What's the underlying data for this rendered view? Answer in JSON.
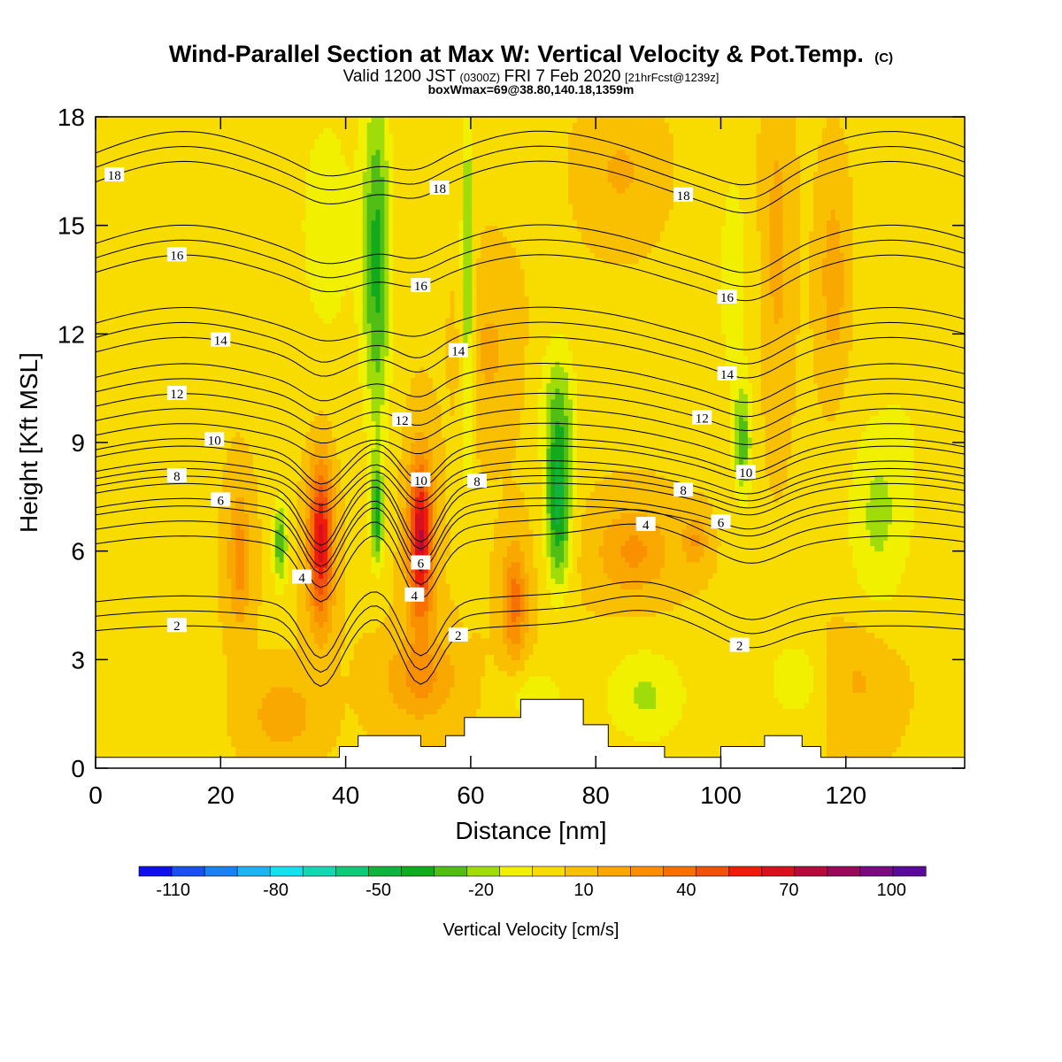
{
  "title": {
    "main": "Wind-Parallel Section at Max W: Vertical Velocity & Pot.Temp.",
    "main_suffix": "(C)",
    "line2_a": "Valid 1200 JST",
    "line2_b": "(0300Z)",
    "line2_c": "FRI 7 Feb 2020",
    "line2_d": "[21hrFcst@1239z]",
    "line3": "boxWmax=69@38.80,140.18,1359m"
  },
  "chart_data": {
    "type": "heatmap",
    "xlabel": "Distance [nm]",
    "ylabel": "Height [Kft MSL]",
    "xlim": [
      0,
      139
    ],
    "ylim": [
      0,
      18
    ],
    "x_ticks": [
      0,
      20,
      40,
      60,
      80,
      100,
      120
    ],
    "y_ticks": [
      0,
      3,
      6,
      9,
      12,
      15,
      18
    ],
    "colorbar": {
      "title": "Vertical Velocity [cm/s]",
      "tick_labels": [
        "-110",
        "-80",
        "-50",
        "-20",
        "10",
        "40",
        "70",
        "100"
      ],
      "tick_values": [
        -110,
        -80,
        -50,
        -20,
        10,
        40,
        70,
        100
      ],
      "min": -120,
      "max": 110,
      "colors": [
        "#1010ee",
        "#1a50f0",
        "#1e80f0",
        "#1eb4f0",
        "#14e0f0",
        "#14d8b4",
        "#10c878",
        "#10b43c",
        "#14aa1e",
        "#50be14",
        "#a0dc0a",
        "#f0f000",
        "#f8dc00",
        "#f8c000",
        "#f8a800",
        "#f89000",
        "#f87000",
        "#f05010",
        "#f01c0a",
        "#d8101e",
        "#b40a3c",
        "#960a5a",
        "#780a82",
        "#5a0a96"
      ]
    },
    "field": {
      "description_values": "vertical velocity blobs (x nm, z kft, half-width x, half-width z, peak cm/s)",
      "blobs": [
        [
          52,
          6.3,
          2.0,
          2.2,
          69
        ],
        [
          36,
          6.3,
          2.0,
          2.2,
          62
        ],
        [
          67,
          4.6,
          2.0,
          1.6,
          34
        ],
        [
          23,
          5.8,
          1.8,
          1.8,
          26
        ],
        [
          86,
          6.0,
          6.0,
          1.2,
          22
        ],
        [
          96,
          6.3,
          2.0,
          0.7,
          20
        ],
        [
          109,
          14.5,
          2.0,
          4.0,
          14
        ],
        [
          63,
          11.5,
          4.0,
          2.0,
          12
        ],
        [
          84,
          16.5,
          5.0,
          1.5,
          12
        ],
        [
          118,
          13.5,
          2.0,
          2.5,
          18
        ],
        [
          52,
          2.5,
          6.0,
          1.2,
          22
        ],
        [
          30,
          1.5,
          5.0,
          1.0,
          18
        ],
        [
          122,
          2.5,
          6.0,
          1.5,
          12
        ],
        [
          45,
          14.0,
          2.2,
          5.0,
          -38
        ],
        [
          45,
          7.0,
          1.0,
          1.4,
          -40
        ],
        [
          59.5,
          13.5,
          1.0,
          5.5,
          -30
        ],
        [
          29.5,
          6.2,
          1.2,
          1.2,
          -36
        ],
        [
          74,
          7.2,
          2.0,
          2.2,
          -48
        ],
        [
          74,
          10.0,
          3.0,
          2.0,
          -24
        ],
        [
          103.5,
          9.0,
          1.5,
          1.6,
          -32
        ],
        [
          102,
          13.5,
          2.5,
          3.5,
          -16
        ],
        [
          125,
          7.0,
          5.0,
          2.8,
          -20
        ],
        [
          88,
          2.0,
          7.0,
          1.4,
          -20
        ],
        [
          70,
          2.0,
          5.0,
          0.8,
          -16
        ],
        [
          112,
          2.5,
          5.0,
          1.2,
          -16
        ],
        [
          37,
          15.0,
          7.0,
          5.0,
          -12
        ],
        [
          132,
          12.0,
          6.0,
          6.0,
          -8
        ]
      ]
    },
    "terrain": {
      "x": [
        0,
        39,
        39,
        42,
        42,
        52,
        52,
        56,
        56,
        59,
        59,
        68,
        68,
        78,
        78,
        82,
        82,
        91,
        91,
        100,
        100,
        107,
        107,
        113,
        113,
        116,
        116,
        139
      ],
      "z": [
        0.3,
        0.3,
        0.6,
        0.6,
        0.9,
        0.9,
        0.6,
        0.6,
        0.9,
        0.9,
        1.4,
        1.4,
        1.9,
        1.9,
        1.2,
        1.2,
        0.6,
        0.6,
        0.3,
        0.3,
        0.6,
        0.6,
        0.9,
        0.9,
        0.6,
        0.6,
        0.3,
        0.3
      ]
    },
    "isentropes": {
      "description_values": "potential temperature (C) contours; each line: value, base height (kft), label positions x(nm)",
      "lines": [
        {
          "value": "2",
          "base": 3.8,
          "label_x": [
            13,
            58,
            103
          ]
        },
        {
          "value": "4",
          "base": 6.2,
          "label_x": [
            33,
            51,
            88
          ]
        },
        {
          "value": "6",
          "base": 7.2,
          "label_x": [
            20,
            52,
            100
          ]
        },
        {
          "value": "8",
          "base": 7.8,
          "label_x": [
            13,
            61,
            94
          ]
        },
        {
          "value": "10",
          "base": 8.8,
          "label_x": [
            19,
            52,
            104
          ]
        },
        {
          "value": "12",
          "base": 10.0,
          "label_x": [
            13,
            49,
            97
          ]
        },
        {
          "value": "14",
          "base": 11.5,
          "label_x": [
            20,
            58,
            101
          ]
        },
        {
          "value": "16",
          "base": 13.7,
          "label_x": [
            13,
            52,
            101
          ]
        },
        {
          "value": "18",
          "base": 16.2,
          "label_x": [
            3,
            55,
            94
          ]
        }
      ]
    }
  }
}
